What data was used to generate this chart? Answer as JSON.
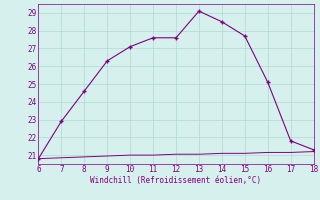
{
  "x": [
    6,
    7,
    8,
    9,
    10,
    11,
    12,
    13,
    14,
    15,
    16,
    17,
    18
  ],
  "y_line1": [
    20.8,
    22.9,
    24.6,
    26.3,
    27.1,
    27.6,
    27.6,
    29.1,
    28.5,
    27.7,
    25.1,
    21.8,
    21.3
  ],
  "y_line2": [
    20.8,
    20.85,
    20.9,
    20.95,
    21.0,
    21.0,
    21.05,
    21.05,
    21.1,
    21.1,
    21.15,
    21.15,
    21.2
  ],
  "line_color": "#800080",
  "bg_color": "#d6f0ee",
  "grid_color": "#b0d8d0",
  "xlabel": "Windchill (Refroidissement éolien,°C)",
  "xlim": [
    6,
    18
  ],
  "ylim": [
    20.5,
    29.5
  ],
  "xticks": [
    6,
    7,
    8,
    9,
    10,
    11,
    12,
    13,
    14,
    15,
    16,
    17,
    18
  ],
  "yticks": [
    21,
    22,
    23,
    24,
    25,
    26,
    27,
    28,
    29
  ],
  "marker": "+"
}
